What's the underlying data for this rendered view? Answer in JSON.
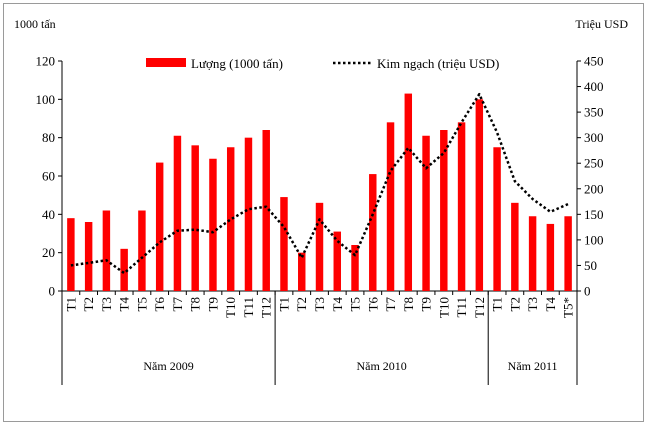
{
  "chart_data": {
    "type": "bar",
    "left_unit": "1000 tấn",
    "right_unit": "Triệu USD",
    "categories": [
      "T1",
      "T2",
      "T3",
      "T4",
      "T5",
      "T6",
      "T7",
      "T8",
      "T9",
      "T10",
      "T11",
      "T12",
      "T1",
      "T2",
      "T3",
      "T4",
      "T5",
      "T6",
      "T7",
      "T8",
      "T9",
      "T10",
      "T11",
      "T12",
      "T1",
      "T2",
      "T3",
      "T4",
      "T5*"
    ],
    "groups": [
      {
        "label": "Năm 2009",
        "start": 0,
        "end": 11
      },
      {
        "label": "Năm 2010",
        "start": 12,
        "end": 23
      },
      {
        "label": "Năm 2011",
        "start": 24,
        "end": 28
      }
    ],
    "y_left": {
      "min": 0,
      "max": 120,
      "ticks": [
        0,
        20,
        40,
        60,
        80,
        100,
        120
      ]
    },
    "y_right": {
      "min": 0,
      "max": 450,
      "ticks": [
        0,
        50,
        100,
        150,
        200,
        250,
        300,
        350,
        400,
        450
      ]
    },
    "series": [
      {
        "name": "Lượng (1000 tấn)",
        "type": "bar",
        "axis": "left",
        "color": "#ff0000",
        "values": [
          38,
          36,
          42,
          22,
          42,
          67,
          81,
          76,
          69,
          75,
          80,
          84,
          49,
          20,
          46,
          31,
          24,
          61,
          88,
          103,
          81,
          84,
          88,
          100,
          75,
          46,
          39,
          35,
          39
        ]
      },
      {
        "name": "Kim ngạch (triệu USD)",
        "type": "line",
        "style": "dotted",
        "axis": "right",
        "color": "#000000",
        "values": [
          50,
          55,
          60,
          35,
          65,
          95,
          118,
          120,
          115,
          140,
          160,
          165,
          125,
          65,
          140,
          98,
          70,
          150,
          235,
          280,
          240,
          270,
          330,
          385,
          310,
          215,
          180,
          155,
          170
        ]
      }
    ],
    "legend": "top-center"
  }
}
